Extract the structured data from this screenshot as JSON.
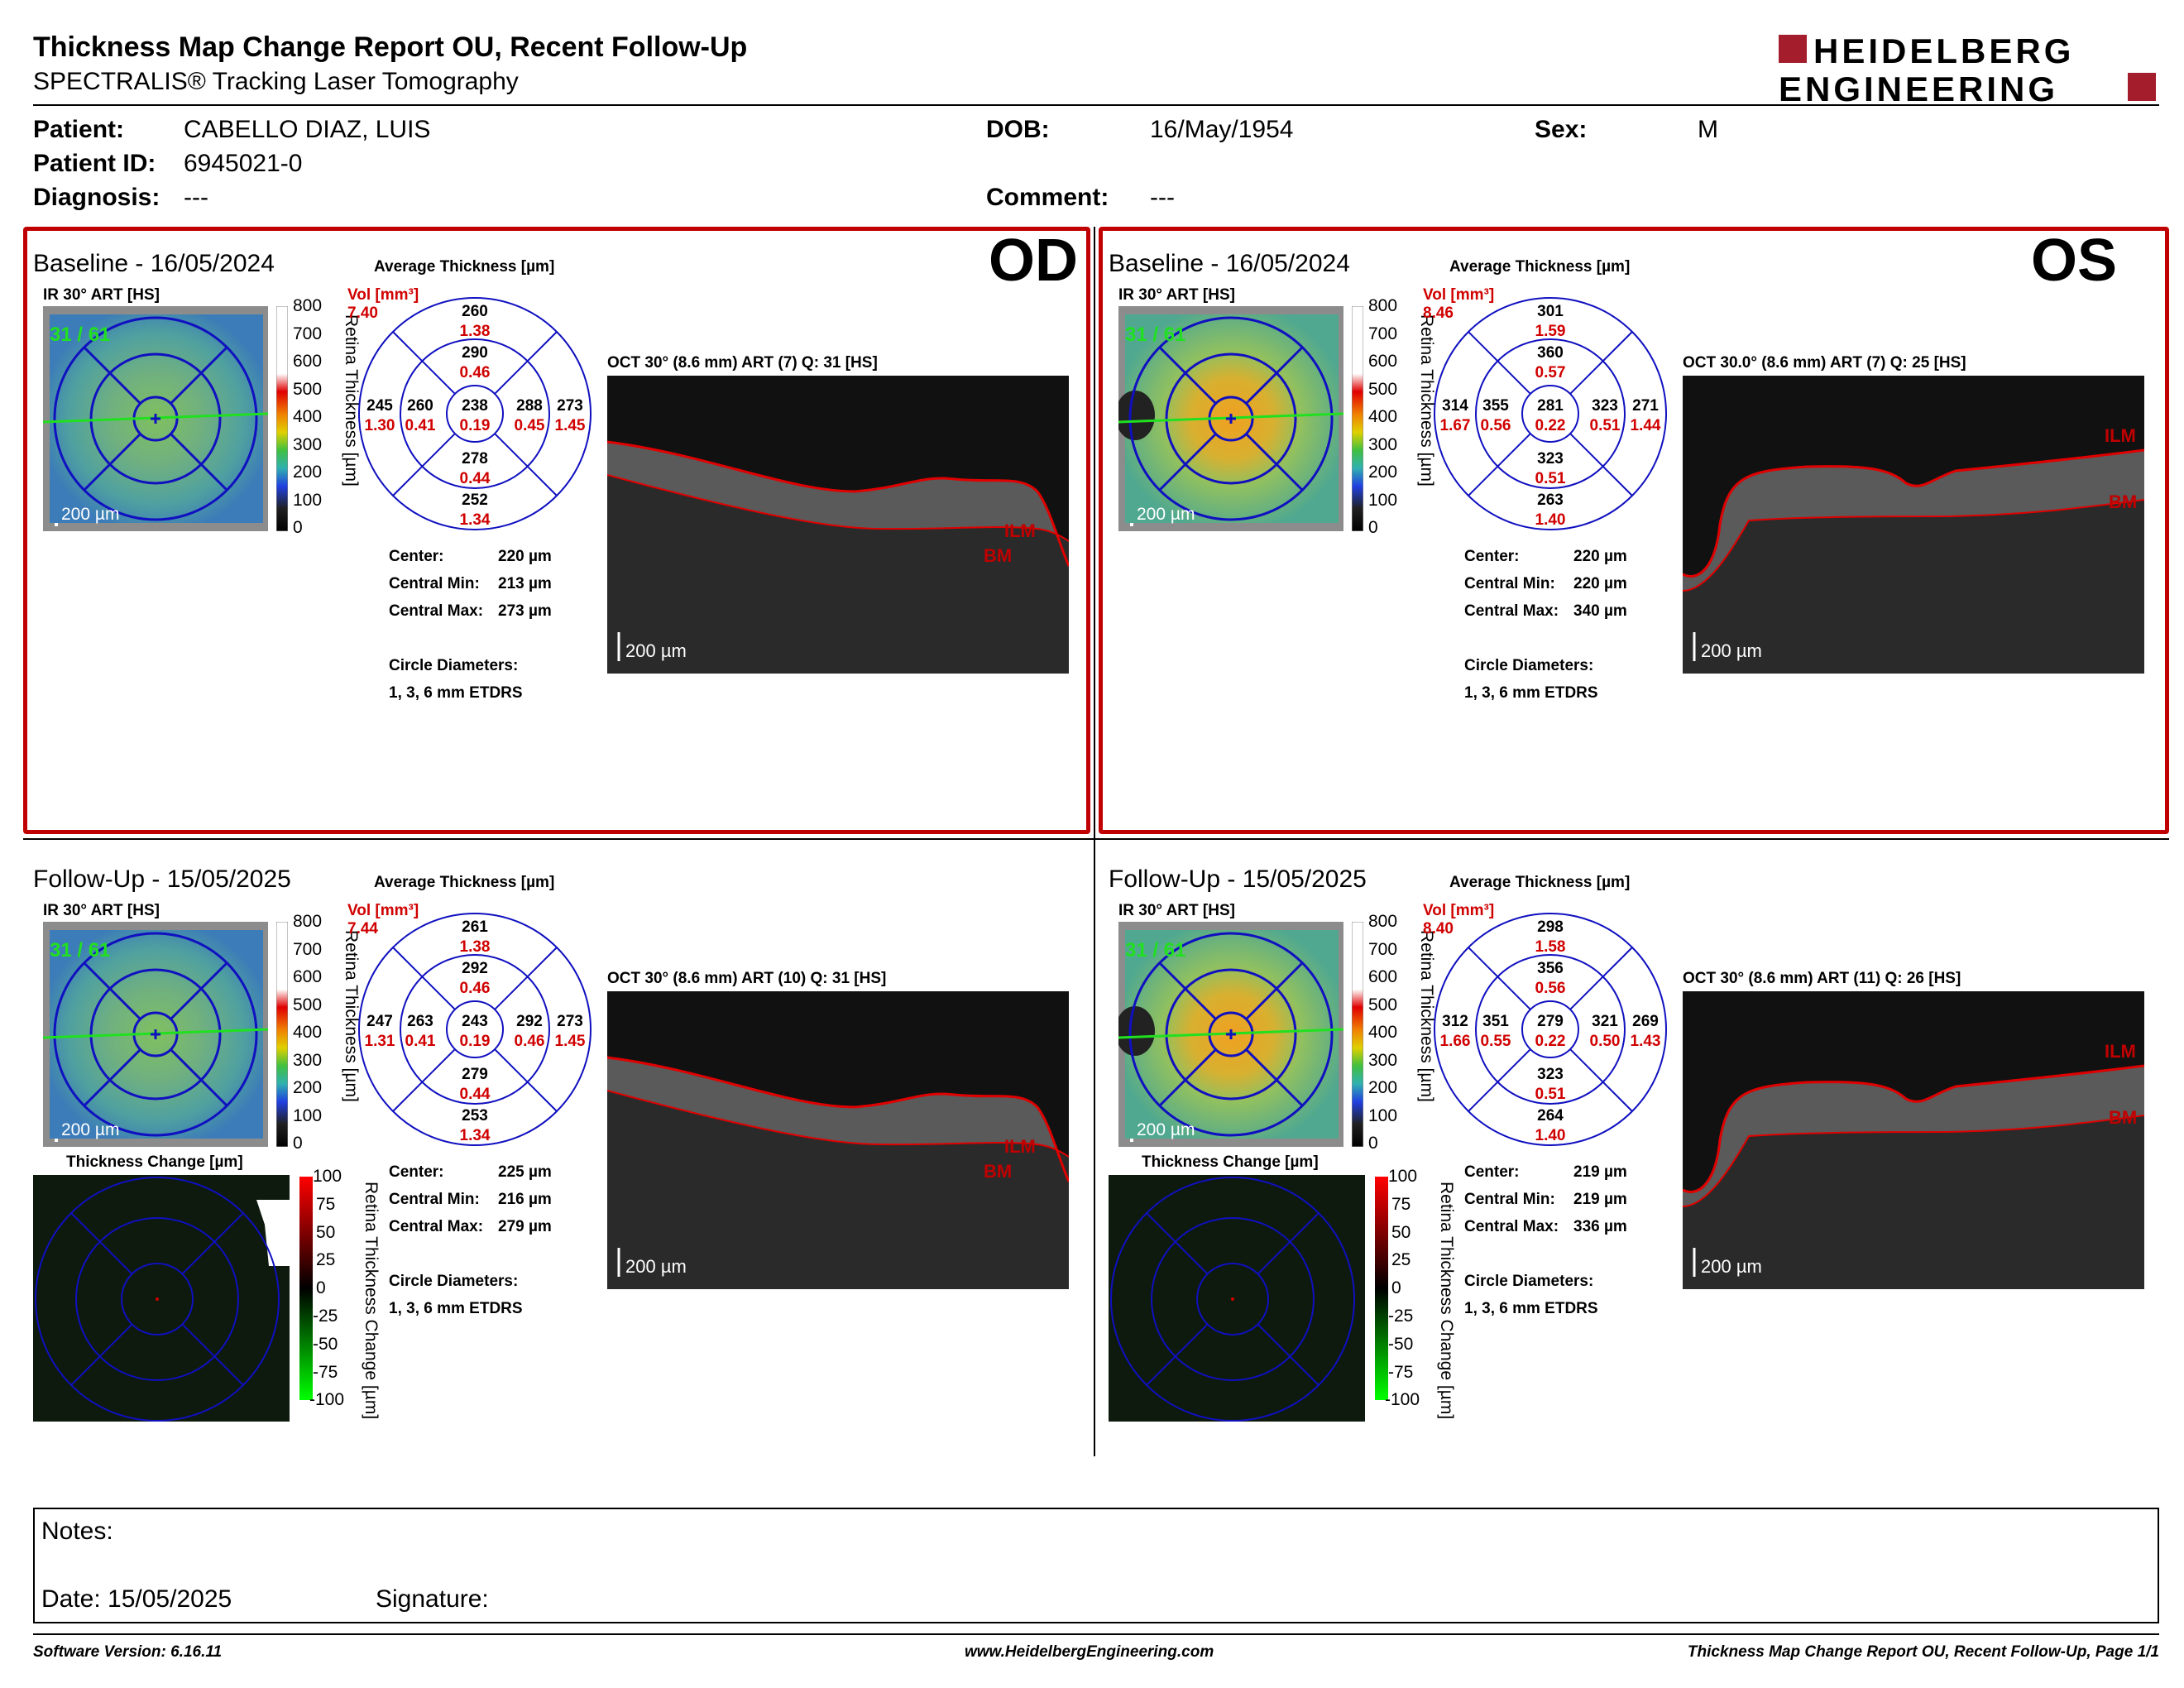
{
  "header": {
    "title": "Thickness Map Change Report OU, Recent Follow-Up",
    "subtitle": "SPECTRALIS® Tracking Laser Tomography",
    "logo_line1": "HEIDELBERG",
    "logo_line2": "ENGINEERING",
    "logo_color": "#a31d2c"
  },
  "patient": {
    "patient_label": "Patient:",
    "patient_value": "CABELLO DIAZ, LUIS",
    "id_label": "Patient ID:",
    "id_value": "6945021-0",
    "diagnosis_label": "Diagnosis:",
    "diagnosis_value": "---",
    "dob_label": "DOB:",
    "dob_value": "16/May/1954",
    "comment_label": "Comment:",
    "comment_value": "---",
    "sex_label": "Sex:",
    "sex_value": "M"
  },
  "common": {
    "avg_label": "Average Thickness [µm]",
    "ir_label": "IR 30° ART [HS]",
    "scale_bar": "200 µm",
    "center_label": "Center:",
    "cmin_label": "Central Min:",
    "cmax_label": "Central Max:",
    "circle_label": "Circle Diameters:",
    "circle_value": "1, 3, 6 mm ETDRS",
    "vol_label": "Vol [mm³]",
    "colorbar_title": "Retina Thickness [µm]",
    "colorbar_ticks": [
      "800",
      "700",
      "600",
      "500",
      "400",
      "300",
      "200",
      "100",
      "0"
    ],
    "change_label": "Thickness Change [µm]",
    "change_bar_title": "Retina Thickness Change [µm]",
    "change_ticks": [
      "100",
      "75",
      "50",
      "25",
      "0",
      "-25",
      "-50",
      "-75",
      "-100"
    ],
    "ilm": "ILM",
    "bm": "BM",
    "accent_red": "#d00000",
    "grid_blue": "#1010c0"
  },
  "od_baseline": {
    "eye": "OD",
    "title": "Baseline - 16/05/2024",
    "ir_count": "31 / 61",
    "oct_label": "OCT 30° (8.6 mm) ART (7) Q: 31 [HS]",
    "vol_total": "7.40",
    "grid": {
      "center": [
        "238",
        "0.19"
      ],
      "inner": {
        "s": [
          "290",
          "0.46"
        ],
        "t": [
          "260",
          "0.41"
        ],
        "n": [
          "288",
          "0.45"
        ],
        "i": [
          "278",
          "0.44"
        ]
      },
      "outer": {
        "s": [
          "260",
          "1.38"
        ],
        "t": [
          "245",
          "1.30"
        ],
        "n": [
          "273",
          "1.45"
        ],
        "i": [
          "252",
          "1.34"
        ]
      }
    },
    "center_val": "220 µm",
    "cmin_val": "213 µm",
    "cmax_val": "273 µm"
  },
  "os_baseline": {
    "eye": "OS",
    "title": "Baseline - 16/05/2024",
    "ir_count": "31 / 61",
    "oct_label": "OCT 30.0° (8.6 mm) ART (7) Q: 25 [HS]",
    "vol_total": "8.46",
    "grid": {
      "center": [
        "281",
        "0.22"
      ],
      "inner": {
        "s": [
          "360",
          "0.57"
        ],
        "t": [
          "355",
          "0.56"
        ],
        "n": [
          "323",
          "0.51"
        ],
        "i": [
          "323",
          "0.51"
        ]
      },
      "outer": {
        "s": [
          "301",
          "1.59"
        ],
        "t": [
          "314",
          "1.67"
        ],
        "n": [
          "271",
          "1.44"
        ],
        "i": [
          "263",
          "1.40"
        ]
      }
    },
    "center_val": "220 µm",
    "cmin_val": "220 µm",
    "cmax_val": "340 µm"
  },
  "od_follow": {
    "title": "Follow-Up - 15/05/2025",
    "ir_count": "31 / 61",
    "oct_label": "OCT 30° (8.6 mm) ART (10) Q: 31 [HS]",
    "vol_total": "7.44",
    "grid": {
      "center": [
        "243",
        "0.19"
      ],
      "inner": {
        "s": [
          "292",
          "0.46"
        ],
        "t": [
          "263",
          "0.41"
        ],
        "n": [
          "292",
          "0.46"
        ],
        "i": [
          "279",
          "0.44"
        ]
      },
      "outer": {
        "s": [
          "261",
          "1.38"
        ],
        "t": [
          "247",
          "1.31"
        ],
        "n": [
          "273",
          "1.45"
        ],
        "i": [
          "253",
          "1.34"
        ]
      }
    },
    "center_val": "225 µm",
    "cmin_val": "216 µm",
    "cmax_val": "279 µm"
  },
  "os_follow": {
    "title": "Follow-Up - 15/05/2025",
    "ir_count": "31 / 61",
    "oct_label": "OCT 30° (8.6 mm) ART (11) Q: 26 [HS]",
    "vol_total": "8.40",
    "grid": {
      "center": [
        "279",
        "0.22"
      ],
      "inner": {
        "s": [
          "356",
          "0.56"
        ],
        "t": [
          "351",
          "0.55"
        ],
        "n": [
          "321",
          "0.50"
        ],
        "i": [
          "323",
          "0.51"
        ]
      },
      "outer": {
        "s": [
          "298",
          "1.58"
        ],
        "t": [
          "312",
          "1.66"
        ],
        "n": [
          "269",
          "1.43"
        ],
        "i": [
          "264",
          "1.40"
        ]
      }
    },
    "center_val": "219 µm",
    "cmin_val": "219 µm",
    "cmax_val": "336 µm"
  },
  "notes": {
    "notes_label": "Notes:",
    "date_label": "Date: 15/05/2025",
    "signature_label": "Signature:"
  },
  "footer": {
    "software": "Software Version: 6.16.11",
    "website": "www.HeidelbergEngineering.com",
    "page": "Thickness Map Change Report OU, Recent Follow-Up, Page 1/1"
  }
}
